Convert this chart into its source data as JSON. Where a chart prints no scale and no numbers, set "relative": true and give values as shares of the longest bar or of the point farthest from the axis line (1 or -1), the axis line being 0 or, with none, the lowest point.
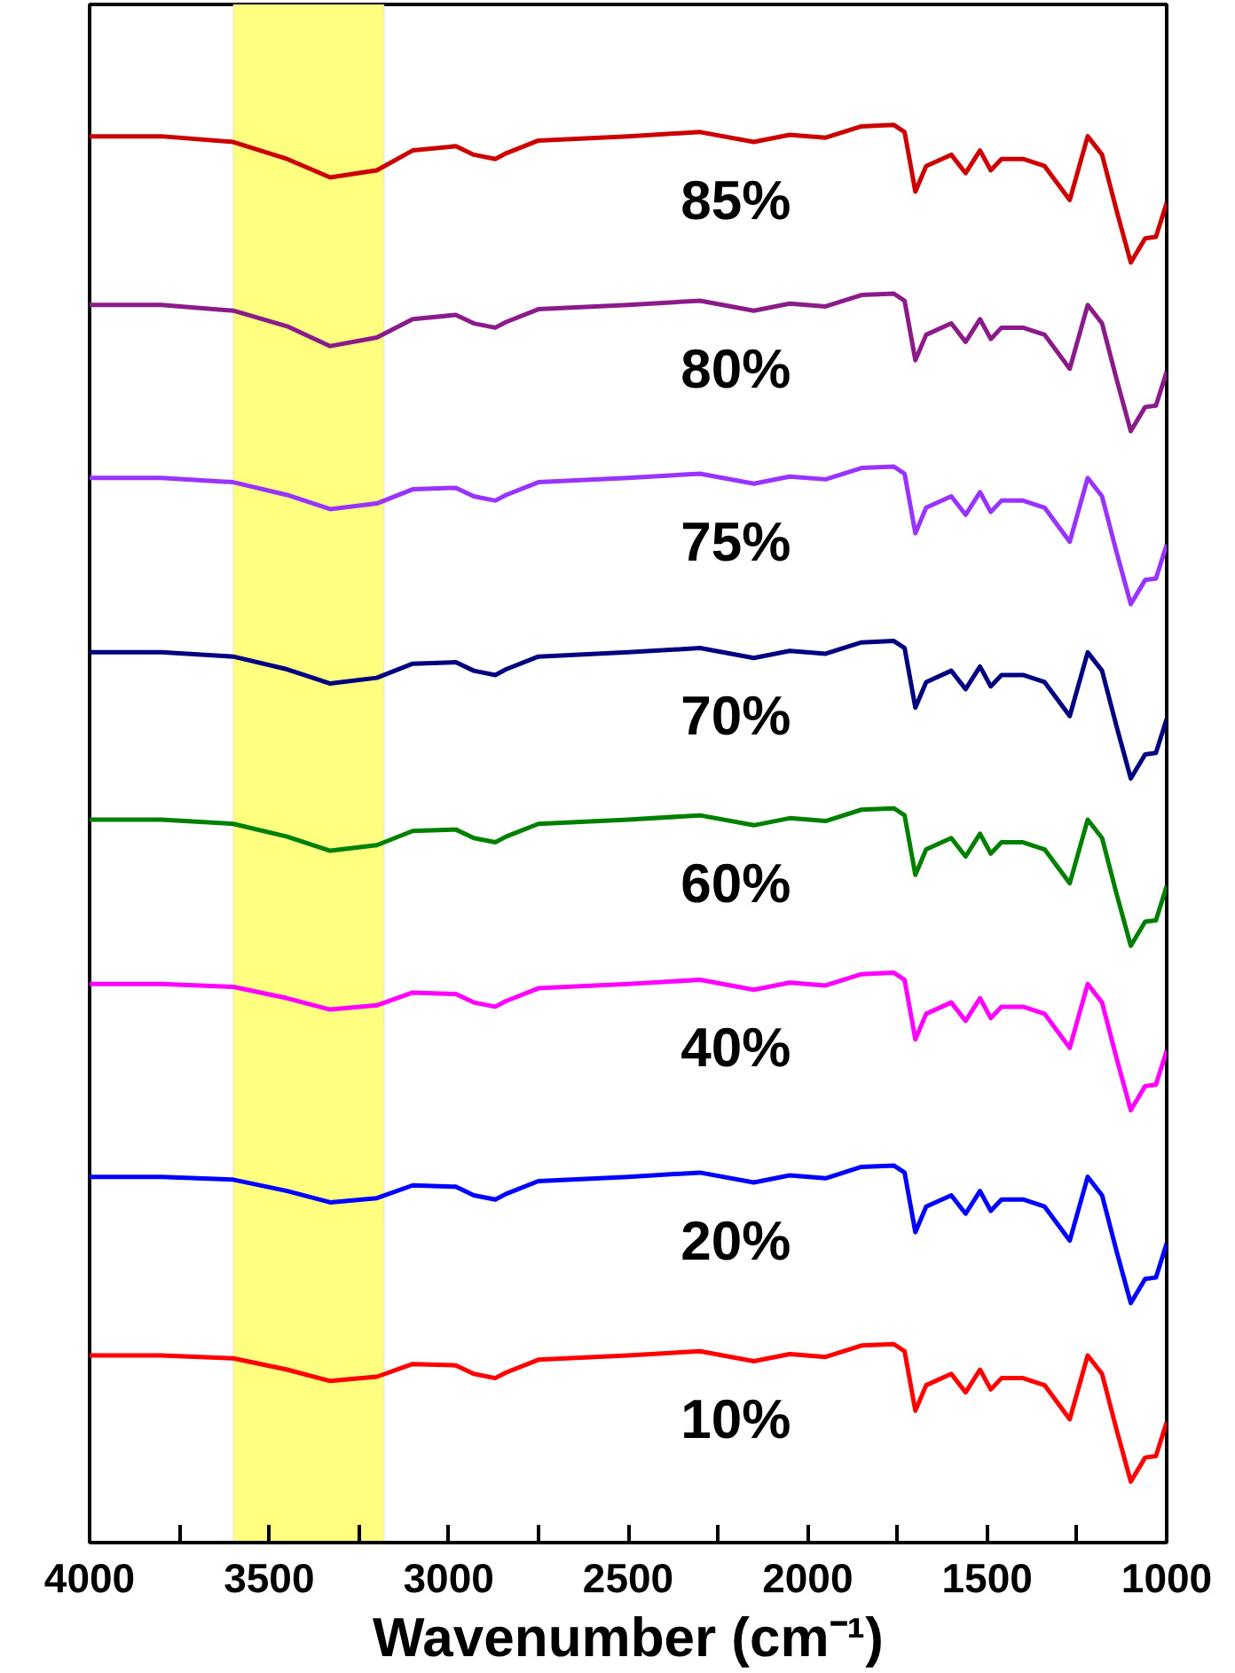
{
  "chart_data": {
    "type": "line",
    "relative": true,
    "xlabel": "Wavenumber (cm⁻¹)",
    "xlim": [
      4000,
      1000
    ],
    "xticks": [
      4000,
      {
        "value": 3750,
        "label": null
      },
      3500,
      {
        "value": 3250,
        "label": null
      },
      3000,
      {
        "value": 2750,
        "label": null
      },
      2500,
      {
        "value": 2250,
        "label": null
      },
      2000,
      {
        "value": 1750,
        "label": null
      },
      1500,
      {
        "value": 1250,
        "label": null
      },
      1000
    ],
    "x": [
      4000,
      3800,
      3600,
      3450,
      3330,
      3200,
      3100,
      2980,
      2930,
      2870,
      2840,
      2750,
      2500,
      2300,
      2150,
      2050,
      1950,
      1850,
      1760,
      1730,
      1700,
      1670,
      1600,
      1560,
      1520,
      1490,
      1460,
      1400,
      1340,
      1270,
      1220,
      1180,
      1140,
      1100,
      1060,
      1030,
      1000
    ],
    "bands": [
      {
        "axis": "x",
        "from": 3600,
        "to": 3180,
        "color": "#ffff80"
      }
    ],
    "grid": false,
    "line_style": "solid",
    "marker": "none",
    "series": [
      {
        "name": "85%",
        "color": "#cc0000",
        "values": [
          0.992,
          0.992,
          0.988,
          0.976,
          0.963,
          0.968,
          0.982,
          0.985,
          0.979,
          0.976,
          0.98,
          0.989,
          0.992,
          0.995,
          0.988,
          0.993,
          0.991,
          0.999,
          1.0,
          0.995,
          0.953,
          0.971,
          0.979,
          0.966,
          0.982,
          0.968,
          0.976,
          0.976,
          0.971,
          0.947,
          0.992,
          0.979,
          0.94,
          0.903,
          0.92,
          0.921,
          0.945
        ]
      },
      {
        "name": "80%",
        "color": "#8b1a8b",
        "values": [
          0.873,
          0.873,
          0.869,
          0.858,
          0.844,
          0.85,
          0.863,
          0.866,
          0.86,
          0.857,
          0.861,
          0.87,
          0.873,
          0.876,
          0.869,
          0.874,
          0.872,
          0.88,
          0.881,
          0.876,
          0.834,
          0.852,
          0.86,
          0.847,
          0.863,
          0.849,
          0.857,
          0.857,
          0.852,
          0.828,
          0.873,
          0.86,
          0.821,
          0.784,
          0.801,
          0.802,
          0.826
        ]
      },
      {
        "name": "75%",
        "color": "#9933ff",
        "values": [
          0.751,
          0.751,
          0.748,
          0.739,
          0.729,
          0.733,
          0.743,
          0.744,
          0.738,
          0.735,
          0.739,
          0.748,
          0.751,
          0.754,
          0.747,
          0.752,
          0.75,
          0.758,
          0.759,
          0.754,
          0.712,
          0.73,
          0.738,
          0.725,
          0.741,
          0.727,
          0.735,
          0.735,
          0.73,
          0.706,
          0.751,
          0.738,
          0.699,
          0.662,
          0.679,
          0.68,
          0.704
        ]
      },
      {
        "name": "70%",
        "color": "#000080",
        "values": [
          0.628,
          0.628,
          0.625,
          0.616,
          0.606,
          0.61,
          0.62,
          0.621,
          0.615,
          0.612,
          0.616,
          0.625,
          0.628,
          0.631,
          0.624,
          0.629,
          0.627,
          0.635,
          0.636,
          0.631,
          0.589,
          0.607,
          0.615,
          0.602,
          0.618,
          0.604,
          0.612,
          0.612,
          0.607,
          0.583,
          0.628,
          0.615,
          0.576,
          0.539,
          0.556,
          0.557,
          0.581
        ]
      },
      {
        "name": "60%",
        "color": "#008000",
        "values": [
          0.51,
          0.51,
          0.507,
          0.498,
          0.488,
          0.492,
          0.502,
          0.503,
          0.497,
          0.494,
          0.498,
          0.507,
          0.51,
          0.513,
          0.506,
          0.511,
          0.509,
          0.517,
          0.518,
          0.513,
          0.471,
          0.489,
          0.497,
          0.484,
          0.5,
          0.486,
          0.494,
          0.494,
          0.489,
          0.465,
          0.51,
          0.497,
          0.458,
          0.421,
          0.438,
          0.439,
          0.463
        ]
      },
      {
        "name": "40%",
        "color": "#ff00ff",
        "values": [
          0.394,
          0.394,
          0.392,
          0.384,
          0.376,
          0.379,
          0.388,
          0.387,
          0.381,
          0.378,
          0.382,
          0.391,
          0.394,
          0.397,
          0.39,
          0.395,
          0.393,
          0.401,
          0.402,
          0.397,
          0.355,
          0.373,
          0.381,
          0.368,
          0.384,
          0.37,
          0.378,
          0.378,
          0.373,
          0.349,
          0.394,
          0.381,
          0.342,
          0.305,
          0.322,
          0.323,
          0.347
        ]
      },
      {
        "name": "20%",
        "color": "#0000ff",
        "values": [
          0.258,
          0.258,
          0.256,
          0.248,
          0.24,
          0.243,
          0.252,
          0.251,
          0.245,
          0.242,
          0.246,
          0.255,
          0.258,
          0.261,
          0.254,
          0.259,
          0.257,
          0.265,
          0.266,
          0.261,
          0.219,
          0.237,
          0.245,
          0.232,
          0.248,
          0.234,
          0.242,
          0.242,
          0.237,
          0.213,
          0.258,
          0.245,
          0.206,
          0.169,
          0.186,
          0.187,
          0.211
        ]
      },
      {
        "name": "10%",
        "color": "#ff0000",
        "values": [
          0.132,
          0.132,
          0.13,
          0.122,
          0.114,
          0.117,
          0.126,
          0.125,
          0.119,
          0.116,
          0.12,
          0.129,
          0.132,
          0.135,
          0.128,
          0.133,
          0.131,
          0.139,
          0.14,
          0.135,
          0.093,
          0.111,
          0.119,
          0.106,
          0.122,
          0.108,
          0.116,
          0.116,
          0.111,
          0.087,
          0.132,
          0.119,
          0.08,
          0.043,
          0.06,
          0.061,
          0.085
        ]
      }
    ]
  }
}
